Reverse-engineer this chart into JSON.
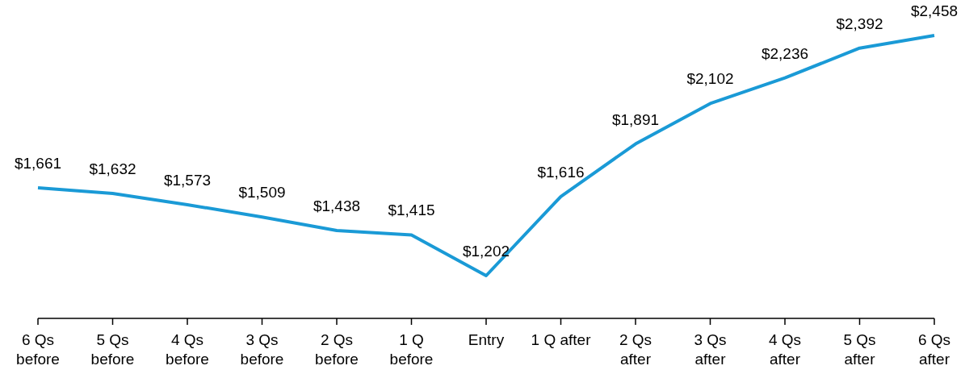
{
  "chart_data": {
    "type": "line",
    "categories": [
      "6 Qs\nbefore",
      "5 Qs\nbefore",
      "4 Qs\nbefore",
      "3 Qs\nbefore",
      "2 Qs\nbefore",
      "1 Q\nbefore",
      "Entry",
      "1 Q after",
      "2 Qs\nafter",
      "3 Qs\nafter",
      "4 Qs\nafter",
      "5 Qs\nafter",
      "6 Qs\nafter"
    ],
    "series": [
      {
        "color": "#1a9ad6",
        "values": [
          1661,
          1632,
          1573,
          1509,
          1438,
          1415,
          1202,
          1616,
          1891,
          2102,
          2236,
          2392,
          2458
        ],
        "value_labels": [
          "$1,661",
          "$1,632",
          "$1,573",
          "$1,509",
          "$1,438",
          "$1,415",
          "$1,202",
          "$1,616",
          "$1,891",
          "$2,102",
          "$2,236",
          "$2,392",
          "$2,458"
        ]
      }
    ],
    "tick_labels": "x",
    "marker": "none",
    "line_style": "solid"
  }
}
